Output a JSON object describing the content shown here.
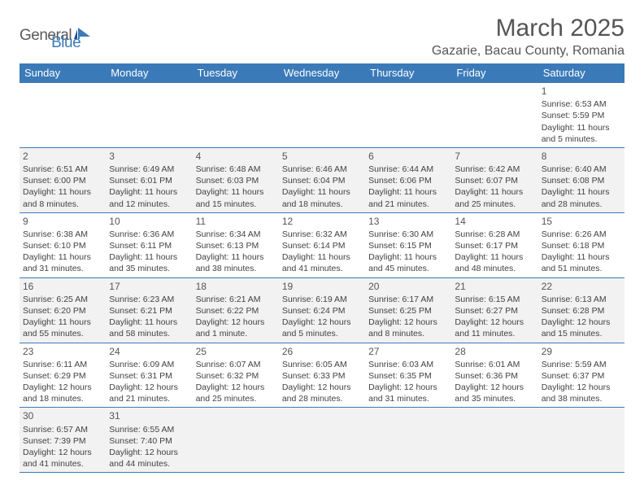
{
  "logo": {
    "part1": "General",
    "part2": "Blue"
  },
  "title": "March 2025",
  "location": "Gazarie, Bacau County, Romania",
  "header_bg": "#3b7ab8",
  "header_fg": "#ffffff",
  "grid_line_color": "#3b7ab8",
  "alt_row_bg": "#f2f2f2",
  "text_color": "#424242",
  "day_headers": [
    "Sunday",
    "Monday",
    "Tuesday",
    "Wednesday",
    "Thursday",
    "Friday",
    "Saturday"
  ],
  "weeks": [
    [
      null,
      null,
      null,
      null,
      null,
      null,
      {
        "n": "1",
        "sr": "6:53 AM",
        "ss": "5:59 PM",
        "dl": "11 hours and 5 minutes."
      }
    ],
    [
      {
        "n": "2",
        "sr": "6:51 AM",
        "ss": "6:00 PM",
        "dl": "11 hours and 8 minutes."
      },
      {
        "n": "3",
        "sr": "6:49 AM",
        "ss": "6:01 PM",
        "dl": "11 hours and 12 minutes."
      },
      {
        "n": "4",
        "sr": "6:48 AM",
        "ss": "6:03 PM",
        "dl": "11 hours and 15 minutes."
      },
      {
        "n": "5",
        "sr": "6:46 AM",
        "ss": "6:04 PM",
        "dl": "11 hours and 18 minutes."
      },
      {
        "n": "6",
        "sr": "6:44 AM",
        "ss": "6:06 PM",
        "dl": "11 hours and 21 minutes."
      },
      {
        "n": "7",
        "sr": "6:42 AM",
        "ss": "6:07 PM",
        "dl": "11 hours and 25 minutes."
      },
      {
        "n": "8",
        "sr": "6:40 AM",
        "ss": "6:08 PM",
        "dl": "11 hours and 28 minutes."
      }
    ],
    [
      {
        "n": "9",
        "sr": "6:38 AM",
        "ss": "6:10 PM",
        "dl": "11 hours and 31 minutes."
      },
      {
        "n": "10",
        "sr": "6:36 AM",
        "ss": "6:11 PM",
        "dl": "11 hours and 35 minutes."
      },
      {
        "n": "11",
        "sr": "6:34 AM",
        "ss": "6:13 PM",
        "dl": "11 hours and 38 minutes."
      },
      {
        "n": "12",
        "sr": "6:32 AM",
        "ss": "6:14 PM",
        "dl": "11 hours and 41 minutes."
      },
      {
        "n": "13",
        "sr": "6:30 AM",
        "ss": "6:15 PM",
        "dl": "11 hours and 45 minutes."
      },
      {
        "n": "14",
        "sr": "6:28 AM",
        "ss": "6:17 PM",
        "dl": "11 hours and 48 minutes."
      },
      {
        "n": "15",
        "sr": "6:26 AM",
        "ss": "6:18 PM",
        "dl": "11 hours and 51 minutes."
      }
    ],
    [
      {
        "n": "16",
        "sr": "6:25 AM",
        "ss": "6:20 PM",
        "dl": "11 hours and 55 minutes."
      },
      {
        "n": "17",
        "sr": "6:23 AM",
        "ss": "6:21 PM",
        "dl": "11 hours and 58 minutes."
      },
      {
        "n": "18",
        "sr": "6:21 AM",
        "ss": "6:22 PM",
        "dl": "12 hours and 1 minute."
      },
      {
        "n": "19",
        "sr": "6:19 AM",
        "ss": "6:24 PM",
        "dl": "12 hours and 5 minutes."
      },
      {
        "n": "20",
        "sr": "6:17 AM",
        "ss": "6:25 PM",
        "dl": "12 hours and 8 minutes."
      },
      {
        "n": "21",
        "sr": "6:15 AM",
        "ss": "6:27 PM",
        "dl": "12 hours and 11 minutes."
      },
      {
        "n": "22",
        "sr": "6:13 AM",
        "ss": "6:28 PM",
        "dl": "12 hours and 15 minutes."
      }
    ],
    [
      {
        "n": "23",
        "sr": "6:11 AM",
        "ss": "6:29 PM",
        "dl": "12 hours and 18 minutes."
      },
      {
        "n": "24",
        "sr": "6:09 AM",
        "ss": "6:31 PM",
        "dl": "12 hours and 21 minutes."
      },
      {
        "n": "25",
        "sr": "6:07 AM",
        "ss": "6:32 PM",
        "dl": "12 hours and 25 minutes."
      },
      {
        "n": "26",
        "sr": "6:05 AM",
        "ss": "6:33 PM",
        "dl": "12 hours and 28 minutes."
      },
      {
        "n": "27",
        "sr": "6:03 AM",
        "ss": "6:35 PM",
        "dl": "12 hours and 31 minutes."
      },
      {
        "n": "28",
        "sr": "6:01 AM",
        "ss": "6:36 PM",
        "dl": "12 hours and 35 minutes."
      },
      {
        "n": "29",
        "sr": "5:59 AM",
        "ss": "6:37 PM",
        "dl": "12 hours and 38 minutes."
      }
    ],
    [
      {
        "n": "30",
        "sr": "6:57 AM",
        "ss": "7:39 PM",
        "dl": "12 hours and 41 minutes."
      },
      {
        "n": "31",
        "sr": "6:55 AM",
        "ss": "7:40 PM",
        "dl": "12 hours and 44 minutes."
      },
      null,
      null,
      null,
      null,
      null
    ]
  ],
  "labels": {
    "sunrise": "Sunrise:",
    "sunset": "Sunset:",
    "daylight": "Daylight:"
  }
}
